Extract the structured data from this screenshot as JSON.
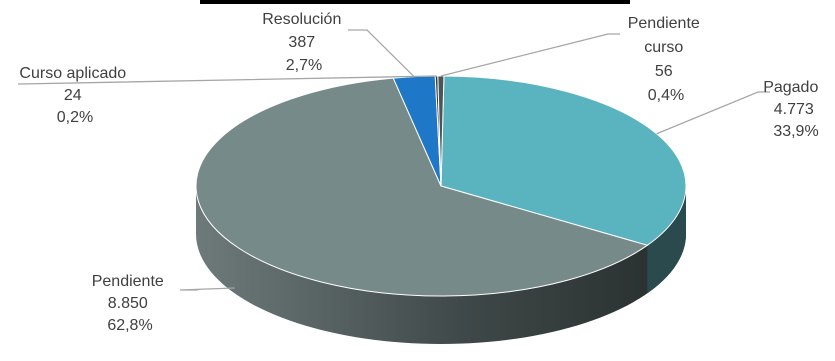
{
  "chart_data": {
    "type": "pie",
    "title": "",
    "three_d": true,
    "slices": [
      {
        "label": "Pagado",
        "value_label": "4.773",
        "value": 4773,
        "percent_label": "33,9%",
        "percent": 33.9,
        "color": "#59b4c0"
      },
      {
        "label": "Pendiente",
        "value_label": "8.850",
        "value": 8850,
        "percent_label": "62,8%",
        "percent": 62.8,
        "color": "#778a8a"
      },
      {
        "label": "Resolución",
        "value_label": "387",
        "value": 387,
        "percent_label": "2,7%",
        "percent": 2.7,
        "color": "#1f77c8"
      },
      {
        "label": "Curso aplicado",
        "value_label": "24",
        "value": 24,
        "percent_label": "0,2%",
        "percent": 0.2,
        "color": "#2f3a3a"
      },
      {
        "label": "Pendiente curso",
        "value_label": "56",
        "value": 56,
        "percent_label": "0,4%",
        "percent": 0.4,
        "color": "#4a5656"
      }
    ],
    "legend": "none",
    "labels": "outside-with-leader-lines"
  }
}
